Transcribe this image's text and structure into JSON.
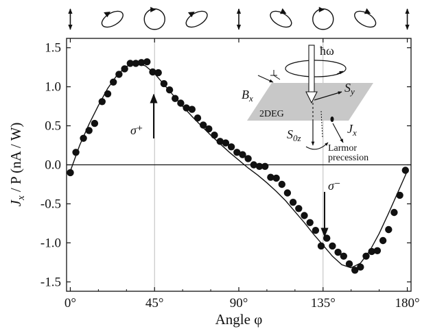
{
  "chart_data": {
    "type": "scatter",
    "xlabel": "Angle φ",
    "ylabel_parts": {
      "j": "J",
      "jsub": "x",
      "rest": " / P (nA / W)"
    },
    "xlim": [
      -2,
      182
    ],
    "ylim": [
      -1.62,
      1.62
    ],
    "x_ticks": [
      0,
      45,
      90,
      135,
      180
    ],
    "x_tick_labels": [
      "0°",
      "45°",
      "90°",
      "135°",
      "180°"
    ],
    "y_ticks": [
      1.5,
      1.0,
      0.5,
      0.0,
      -0.5,
      -1.0,
      -1.5
    ],
    "y_tick_labels": [
      "1.5",
      "1.0",
      "0.5",
      "0.0",
      "-0.5",
      "-1.0",
      "-1.5"
    ],
    "zero_line": true,
    "reference_lines_x": [
      45,
      135
    ],
    "series": [
      {
        "marker": "filled-circle",
        "x": [
          0,
          3,
          7,
          10,
          13,
          17,
          20,
          23,
          26,
          29,
          32,
          35,
          38,
          41,
          44,
          47,
          50,
          53,
          56,
          59,
          62,
          65,
          68,
          71,
          74,
          77,
          80,
          83,
          86,
          89,
          92,
          95,
          98,
          101,
          104,
          107,
          110,
          113,
          116,
          119,
          122,
          125,
          128,
          131,
          134,
          137,
          140,
          143,
          146,
          149,
          152,
          155,
          158,
          161,
          164,
          167,
          170,
          173,
          176,
          179
        ],
        "y": [
          -0.1,
          0.16,
          0.34,
          0.44,
          0.53,
          0.81,
          0.91,
          1.06,
          1.16,
          1.23,
          1.3,
          1.3,
          1.31,
          1.32,
          1.19,
          1.18,
          1.04,
          0.96,
          0.85,
          0.79,
          0.73,
          0.71,
          0.6,
          0.51,
          0.46,
          0.38,
          0.3,
          0.28,
          0.23,
          0.16,
          0.13,
          0.08,
          0.0,
          -0.02,
          -0.02,
          -0.16,
          -0.17,
          -0.25,
          -0.36,
          -0.48,
          -0.56,
          -0.65,
          -0.74,
          -0.84,
          -1.04,
          -0.94,
          -1.04,
          -1.12,
          -1.17,
          -1.27,
          -1.35,
          -1.31,
          -1.17,
          -1.11,
          -1.1,
          -0.97,
          -0.83,
          -0.61,
          -0.39,
          -0.07
        ]
      },
      {
        "line": "smooth-fit",
        "x": [
          0,
          5,
          10,
          15,
          20,
          25,
          30,
          35,
          40,
          45,
          50,
          55,
          60,
          65,
          70,
          75,
          80,
          85,
          90,
          95,
          100,
          105,
          110,
          115,
          120,
          125,
          130,
          135,
          140,
          145,
          150,
          155,
          160,
          165,
          170,
          175,
          180
        ],
        "y": [
          -0.08,
          0.25,
          0.52,
          0.76,
          0.98,
          1.15,
          1.26,
          1.3,
          1.27,
          1.17,
          1.03,
          0.89,
          0.75,
          0.62,
          0.5,
          0.38,
          0.27,
          0.16,
          0.06,
          -0.04,
          -0.13,
          -0.23,
          -0.34,
          -0.46,
          -0.6,
          -0.74,
          -0.89,
          -1.03,
          -1.17,
          -1.28,
          -1.32,
          -1.26,
          -1.1,
          -0.88,
          -0.62,
          -0.35,
          -0.08
        ]
      }
    ],
    "annotations": {
      "sigma_plus_label": "σ⁺",
      "sigma_minus_label": "σ⁻",
      "hbar_omega": "ħω",
      "bx": "B",
      "bx_sub": "x",
      "sy": "S",
      "sy_sub": "y",
      "s0z": "S",
      "s0z_sub": "0z",
      "jx": "J",
      "jx_sub": "x",
      "twodeg": "2DEG",
      "larmor_1": "Larmor",
      "larmor_2": "precession"
    },
    "polarization_icons": [
      "linear-arrow-icon",
      "elliptical-polarization-icon",
      "circular-polarization-icon",
      "elliptical-polarization-icon",
      "linear-arrow-icon",
      "elliptical-polarization-icon",
      "circular-polarization-icon",
      "elliptical-polarization-icon",
      "linear-arrow-icon"
    ]
  }
}
